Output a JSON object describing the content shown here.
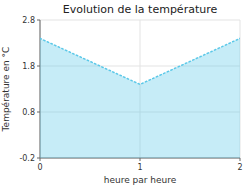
{
  "chart_data": {
    "type": "area",
    "title": "Evolution de la température",
    "xlabel": "heure par heure",
    "ylabel": "Température en °C",
    "x": [
      0,
      1,
      2
    ],
    "values": [
      2.4,
      1.4,
      2.4
    ],
    "xlim": [
      0,
      2
    ],
    "ylim": [
      -0.2,
      2.8
    ],
    "xticks": [
      0,
      1,
      2
    ],
    "yticks": [
      -0.2,
      0.8,
      1.8,
      2.8
    ],
    "color": "#5bc8e8",
    "line_style": "dotted",
    "grid": true
  }
}
